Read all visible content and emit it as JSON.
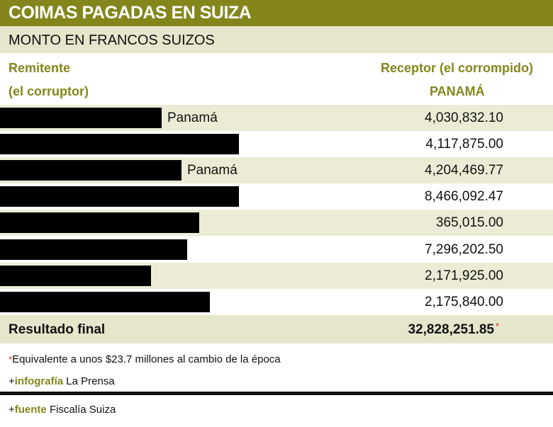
{
  "header": {
    "title": "COIMAS PAGADAS EN SUIZA",
    "subtitle": "MONTO EN FRANCOS SUIZOS"
  },
  "table": {
    "columns": {
      "sender": {
        "line1": "Remitente",
        "line2": "(el corruptor)"
      },
      "receiver": {
        "line1": "Receptor (el corrompido)",
        "line2": "PANAMÁ"
      }
    },
    "rows": [
      {
        "sender": "Panamá",
        "amount": "4,030,832.10"
      },
      {
        "amount": "4,117,875.00"
      },
      {
        "sender": "Panamá",
        "amount": "4,204,469.77"
      },
      {
        "amount": "8,466,092.47"
      },
      {
        "amount": "365,015.00"
      },
      {
        "amount": "7,296,202.50"
      },
      {
        "amount": "2,171,925.00"
      },
      {
        "amount": "2,175,840.00"
      }
    ],
    "total": {
      "label": "Resultado final",
      "amount": "32,828,251.85",
      "marker": "*"
    }
  },
  "note": {
    "marker": "*",
    "text": "Equivalente a unos $23.7 millones al cambio de la época"
  },
  "credits": [
    {
      "prefix": "+",
      "label": "infografía",
      "text": "La Prensa"
    },
    {
      "prefix": "+",
      "label": "fuente",
      "text": "Fiscalía Suiza"
    }
  ]
}
